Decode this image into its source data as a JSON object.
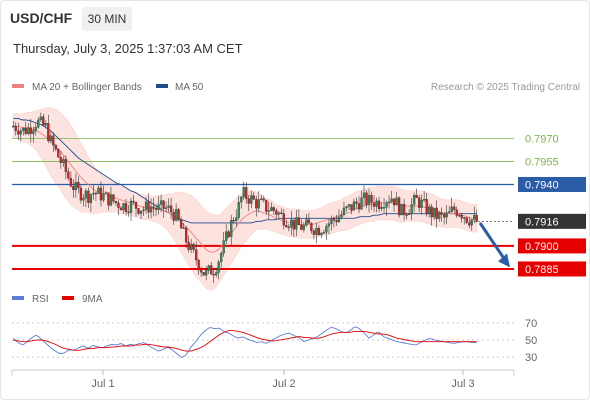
{
  "header": {
    "symbol": "USD/CHF",
    "timeframe": "30 MIN",
    "datetime": "Thursday, July 3, 2025 1:37:03 AM CET"
  },
  "legend": {
    "ma20_label": "MA 20 + Bollinger Bands",
    "ma50_label": "MA 50",
    "rsi_label": "RSI",
    "ma9_label": "9MA",
    "credit": "Research © 2025 Trading Central"
  },
  "colors": {
    "bullish": "#2e8b57",
    "bearish": "#cc2222",
    "ma20": "#f08080",
    "ma50": "#1f4e8c",
    "bands": "#fde3e0",
    "resistance": "#7ab648",
    "key": "#2a5ca8",
    "support": "#e60000",
    "rsi": "#5b7fd6",
    "arrow": "#2a5ca8"
  },
  "chart_data": {
    "type": "candlestick",
    "instrument": "USD/CHF",
    "interval": "30 MIN",
    "x_ticks": [
      "Jul 1",
      "Jul 2",
      "Jul 3"
    ],
    "y_range": [
      0.787,
      0.7995
    ],
    "levels": [
      {
        "value": 0.797,
        "label": "0.7970",
        "role": "resistance"
      },
      {
        "value": 0.7955,
        "label": "0.7955",
        "role": "resistance"
      },
      {
        "value": 0.794,
        "label": "0.7940",
        "role": "pivot"
      },
      {
        "value": 0.79,
        "label": "0.7900",
        "role": "support"
      },
      {
        "value": 0.7885,
        "label": "0.7885",
        "role": "support"
      }
    ],
    "last_price": {
      "value": 0.7916,
      "label": "0.7916"
    },
    "forecast_arrow": {
      "from": 0.7915,
      "to": 0.7886
    },
    "price_path": [
      0.7978,
      0.7977,
      0.7975,
      0.7976,
      0.7978,
      0.7981,
      0.7979,
      0.7977,
      0.7968,
      0.7962,
      0.7956,
      0.795,
      0.7943,
      0.7938,
      0.7935,
      0.7934,
      0.7933,
      0.7935,
      0.7934,
      0.7933,
      0.7931,
      0.793,
      0.7928,
      0.7927,
      0.7926,
      0.7927,
      0.7926,
      0.7925,
      0.7924,
      0.7926,
      0.7925,
      0.7924,
      0.7925,
      0.7924,
      0.7922,
      0.7918,
      0.791,
      0.7903,
      0.7897,
      0.7892,
      0.7886,
      0.7881,
      0.7884,
      0.7885,
      0.7892,
      0.79,
      0.791,
      0.7918,
      0.7924,
      0.7934,
      0.7932,
      0.793,
      0.7928,
      0.7927,
      0.7925,
      0.7924,
      0.7923,
      0.792,
      0.7918,
      0.7916,
      0.7914,
      0.7913,
      0.7912,
      0.7913,
      0.7912,
      0.7911,
      0.7912,
      0.7914,
      0.7916,
      0.7918,
      0.792,
      0.7923,
      0.7925,
      0.7927,
      0.7929,
      0.793,
      0.7929,
      0.7929,
      0.7928,
      0.793,
      0.7931,
      0.7932,
      0.7927,
      0.7922,
      0.7924,
      0.7926,
      0.793,
      0.7928,
      0.7925,
      0.7922,
      0.792,
      0.7919,
      0.7918,
      0.792,
      0.7924,
      0.7923,
      0.7921,
      0.7918,
      0.7917,
      0.7916
    ],
    "ma20": [
      0.7978,
      0.7978,
      0.7977,
      0.7977,
      0.7976,
      0.7975,
      0.7973,
      0.7971,
      0.7968,
      0.7965,
      0.7962,
      0.7958,
      0.7954,
      0.795,
      0.7946,
      0.7943,
      0.794,
      0.7937,
      0.7935,
      0.7934,
      0.7933,
      0.7932,
      0.7931,
      0.793,
      0.7929,
      0.7928,
      0.7927,
      0.7926,
      0.7925,
      0.7925,
      0.7924,
      0.7924,
      0.7923,
      0.7922,
      0.792,
      0.7918,
      0.7915,
      0.7912,
      0.7909,
      0.7905,
      0.7902,
      0.7898,
      0.7896,
      0.7896,
      0.7898,
      0.7902,
      0.7906,
      0.791,
      0.7914,
      0.7918,
      0.792,
      0.7922,
      0.7923,
      0.7922,
      0.7921,
      0.792,
      0.7918,
      0.7917,
      0.7916,
      0.7915,
      0.7915,
      0.7914,
      0.7914,
      0.7914,
      0.7914,
      0.7915,
      0.7916,
      0.7917,
      0.7918,
      0.7919,
      0.792,
      0.7921,
      0.7922,
      0.7924,
      0.7925,
      0.7926,
      0.7927,
      0.7927,
      0.7928,
      0.7928,
      0.7928,
      0.7928,
      0.7927,
      0.7926,
      0.7926,
      0.7926,
      0.7926,
      0.7926,
      0.7925,
      0.7924,
      0.7923,
      0.7922,
      0.7921,
      0.7921,
      0.7921,
      0.7921,
      0.792,
      0.7919,
      0.7918,
      0.7918
    ],
    "band_width": [
      0.0008,
      0.0008,
      0.0009,
      0.001,
      0.0011,
      0.0013,
      0.0016,
      0.0019,
      0.0022,
      0.0024,
      0.0025,
      0.0026,
      0.0026,
      0.0025,
      0.0023,
      0.0021,
      0.0018,
      0.0016,
      0.0014,
      0.0012,
      0.0011,
      0.001,
      0.0009,
      0.0009,
      0.0008,
      0.0008,
      0.0008,
      0.0008,
      0.0008,
      0.0008,
      0.0008,
      0.0009,
      0.001,
      0.0012,
      0.0014,
      0.0017,
      0.002,
      0.0022,
      0.0024,
      0.0025,
      0.0025,
      0.0025,
      0.0025,
      0.0024,
      0.0022,
      0.0021,
      0.002,
      0.0019,
      0.0018,
      0.0017,
      0.0016,
      0.0014,
      0.0012,
      0.0011,
      0.001,
      0.001,
      0.0009,
      0.0009,
      0.0009,
      0.0009,
      0.0009,
      0.0009,
      0.0009,
      0.0009,
      0.0009,
      0.0009,
      0.0009,
      0.001,
      0.001,
      0.001,
      0.001,
      0.0011,
      0.0011,
      0.0011,
      0.0011,
      0.0011,
      0.0011,
      0.0011,
      0.0011,
      0.0011,
      0.0011,
      0.0011,
      0.0011,
      0.0011,
      0.001,
      0.001,
      0.001,
      0.001,
      0.001,
      0.001,
      0.001,
      0.0009,
      0.0009,
      0.0009,
      0.0009,
      0.0009,
      0.0009,
      0.0009,
      0.0009,
      0.0009
    ],
    "ma50": [
      0.7983,
      0.7983,
      0.7982,
      0.7982,
      0.7981,
      0.798,
      0.7979,
      0.7977,
      0.7975,
      0.7972,
      0.7969,
      0.7966,
      0.7963,
      0.796,
      0.7957,
      0.7955,
      0.7953,
      0.7951,
      0.7949,
      0.7947,
      0.7945,
      0.7943,
      0.7941,
      0.794,
      0.7938,
      0.7936,
      0.7935,
      0.7933,
      0.7931,
      0.7929,
      0.7927,
      0.7925,
      0.7923,
      0.7922,
      0.792,
      0.7918,
      0.7917,
      0.7916,
      0.7915,
      0.7915,
      0.7915,
      0.7915,
      0.7915,
      0.7915,
      0.7915,
      0.7915,
      0.7915,
      0.7915,
      0.7915,
      0.7915,
      0.7915,
      0.7915,
      0.7916,
      0.7916,
      0.7917,
      0.7917,
      0.7917,
      0.7918,
      0.7918,
      0.7918,
      0.7918,
      0.7918,
      0.7918,
      0.7918,
      0.7918,
      0.7918,
      0.7918,
      0.7918,
      0.7918,
      0.7918,
      0.7918,
      0.7918,
      0.7918,
      0.7918,
      0.7919,
      0.7919,
      0.7919,
      0.792,
      0.792,
      0.7921,
      0.7921,
      0.7921,
      0.7921,
      0.7921,
      0.7921,
      0.7921,
      0.7921,
      0.7921,
      0.7921,
      0.7921,
      0.7921,
      0.7921,
      0.7921,
      0.7921,
      0.7921,
      0.7921,
      0.7921,
      0.7921,
      0.7921,
      0.7921
    ],
    "rsi": {
      "ticks": [
        30,
        50,
        70
      ],
      "range": [
        22,
        78
      ],
      "values": [
        52,
        47,
        44,
        48,
        53,
        56,
        51,
        46,
        41,
        37,
        34,
        35,
        39,
        38,
        41,
        43,
        40,
        44,
        42,
        41,
        43,
        45,
        44,
        46,
        43,
        45,
        44,
        46,
        47,
        43,
        40,
        37,
        39,
        42,
        38,
        34,
        29,
        33,
        42,
        48,
        56,
        61,
        65,
        63,
        64,
        60,
        58,
        55,
        52,
        54,
        51,
        49,
        47,
        48,
        46,
        49,
        52,
        55,
        57,
        58,
        55,
        53,
        48,
        50,
        52,
        54,
        58,
        62,
        65,
        63,
        60,
        58,
        61,
        66,
        63,
        58,
        52,
        56,
        60,
        54,
        52,
        50,
        48,
        47,
        46,
        45,
        44,
        47,
        50,
        52,
        50,
        49,
        48,
        47,
        46,
        47,
        48,
        48,
        47,
        47
      ],
      "ma9": [
        50,
        49,
        48,
        48,
        49,
        50,
        50,
        49,
        47,
        45,
        42,
        40,
        39,
        38,
        38,
        39,
        40,
        40,
        41,
        41,
        41,
        42,
        42,
        43,
        43,
        43,
        44,
        44,
        45,
        45,
        44,
        43,
        42,
        42,
        41,
        40,
        38,
        37,
        37,
        39,
        41,
        44,
        48,
        52,
        56,
        59,
        61,
        61,
        60,
        59,
        57,
        55,
        53,
        51,
        50,
        49,
        49,
        50,
        51,
        52,
        53,
        54,
        53,
        53,
        52,
        52,
        53,
        55,
        57,
        58,
        59,
        59,
        59,
        60,
        60,
        60,
        59,
        58,
        57,
        57,
        56,
        54,
        52,
        51,
        50,
        49,
        48,
        48,
        48,
        48,
        48,
        48,
        48,
        48,
        48,
        48,
        48,
        48,
        48,
        48
      ]
    }
  }
}
